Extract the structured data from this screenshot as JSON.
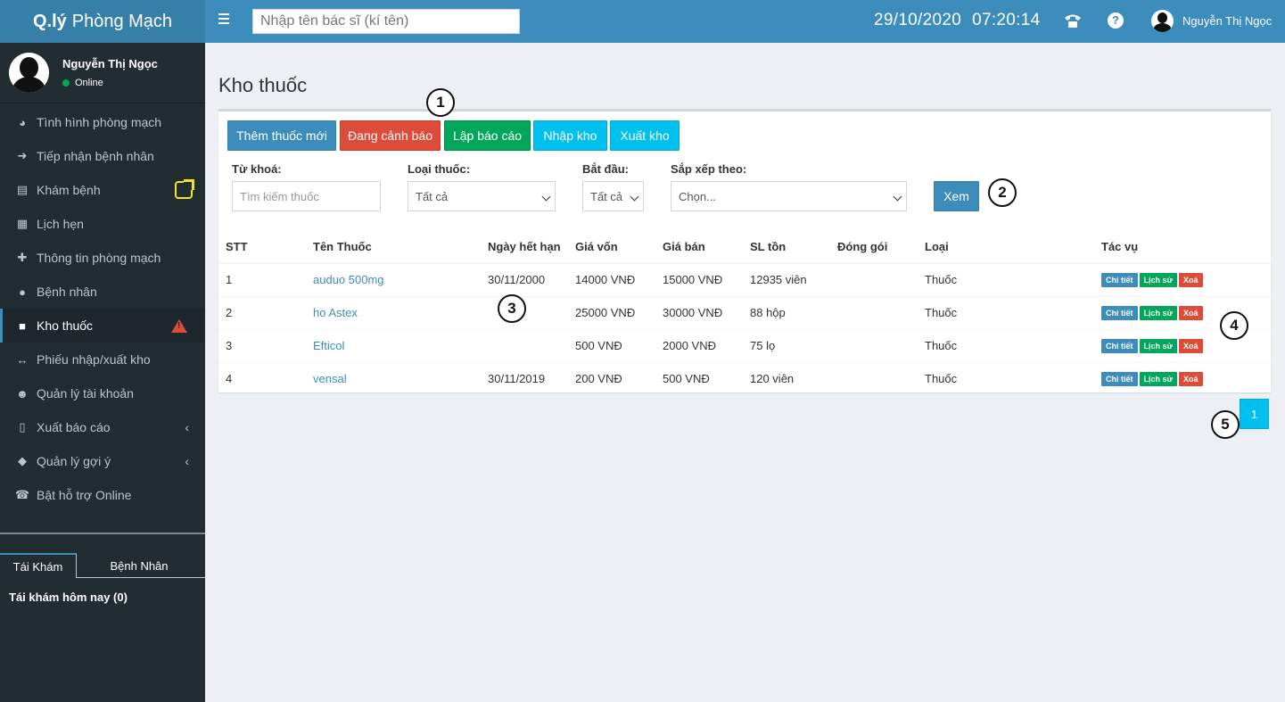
{
  "app": {
    "brand_bold": "Q.lý",
    "brand_rest": "Phòng Mạch"
  },
  "sidebar": {
    "user_name": "Nguyễn Thị Ngọc",
    "user_status": "Online",
    "menu": [
      {
        "label": "Tình hình phòng mạch",
        "icon": "pie-chart-icon"
      },
      {
        "label": "Tiếp nhận bệnh nhân",
        "icon": "sign-in-icon"
      },
      {
        "label": "Khám bệnh",
        "icon": "clipboard-icon"
      },
      {
        "label": "Lịch hẹn",
        "icon": "calendar-icon"
      },
      {
        "label": "Thông tin phòng mạch",
        "icon": "plus-icon"
      },
      {
        "label": "Bệnh nhân",
        "icon": "user-icon"
      },
      {
        "label": "Kho thuốc",
        "icon": "ambulance-icon"
      },
      {
        "label": "Phiếu nhập/xuất kho",
        "icon": "arrows-h-icon"
      },
      {
        "label": "Quản lý tài khoản",
        "icon": "users-icon"
      },
      {
        "label": "Xuất báo cáo",
        "icon": "file-excel-icon"
      },
      {
        "label": "Quản lý gợi ý",
        "icon": "tags-icon"
      },
      {
        "label": "Bật hỗ trợ Online",
        "icon": "phone-icon"
      }
    ],
    "tabs": [
      "Tái Khám",
      "Bệnh Nhân"
    ],
    "tab_content": "Tái khám hôm nay (0)"
  },
  "header": {
    "search_placeholder": "Nhập tên bác sĩ (kí tên)",
    "date": "29/10/2020",
    "time": "07:20:14",
    "user_name": "Nguyễn Thị Ngọc"
  },
  "page": {
    "title": "Kho thuốc",
    "buttons": {
      "add": "Thêm thuốc mới",
      "warning": "Đang cảnh báo",
      "report": "Lập báo cáo",
      "import": "Nhập kho",
      "export": "Xuất kho",
      "view": "Xem"
    },
    "filters": {
      "keyword_label": "Từ khoá:",
      "keyword_placeholder": "Tìm kiếm thuốc",
      "type_label": "Loại thuốc:",
      "type_value": "Tất cả",
      "start_label": "Bắt đầu:",
      "start_value": "Tất cả",
      "sort_label": "Sắp xếp theo:",
      "sort_value": "Chọn..."
    },
    "table": {
      "headers": [
        "STT",
        "Tên Thuốc",
        "Ngày hết hạn",
        "Giá vốn",
        "Giá bán",
        "SL tồn",
        "Đóng gói",
        "Loại",
        "Tác vụ"
      ],
      "rows": [
        {
          "stt": "1",
          "name": "auduo 500mg",
          "expiry": "30/11/2000",
          "cost": "14000 VNĐ",
          "price": "15000 VNĐ",
          "stock": "12935 viên",
          "pack": "",
          "type": "Thuốc"
        },
        {
          "stt": "2",
          "name": "ho Astex",
          "expiry": "",
          "cost": "25000 VNĐ",
          "price": "30000 VNĐ",
          "stock": "88 hộp",
          "pack": "",
          "type": "Thuốc"
        },
        {
          "stt": "3",
          "name": "Efticol",
          "expiry": "",
          "cost": "500 VNĐ",
          "price": "2000 VNĐ",
          "stock": "75 lọ",
          "pack": "",
          "type": "Thuốc"
        },
        {
          "stt": "4",
          "name": "vensal",
          "expiry": "30/11/2019",
          "cost": "200 VNĐ",
          "price": "500 VNĐ",
          "stock": "120 viên",
          "pack": "",
          "type": "Thuốc"
        }
      ],
      "actions": [
        "Chi tiết",
        "Lịch sử",
        "Xoá"
      ]
    },
    "pagination": [
      "1"
    ]
  },
  "callouts": [
    "1",
    "2",
    "3",
    "4",
    "5"
  ]
}
